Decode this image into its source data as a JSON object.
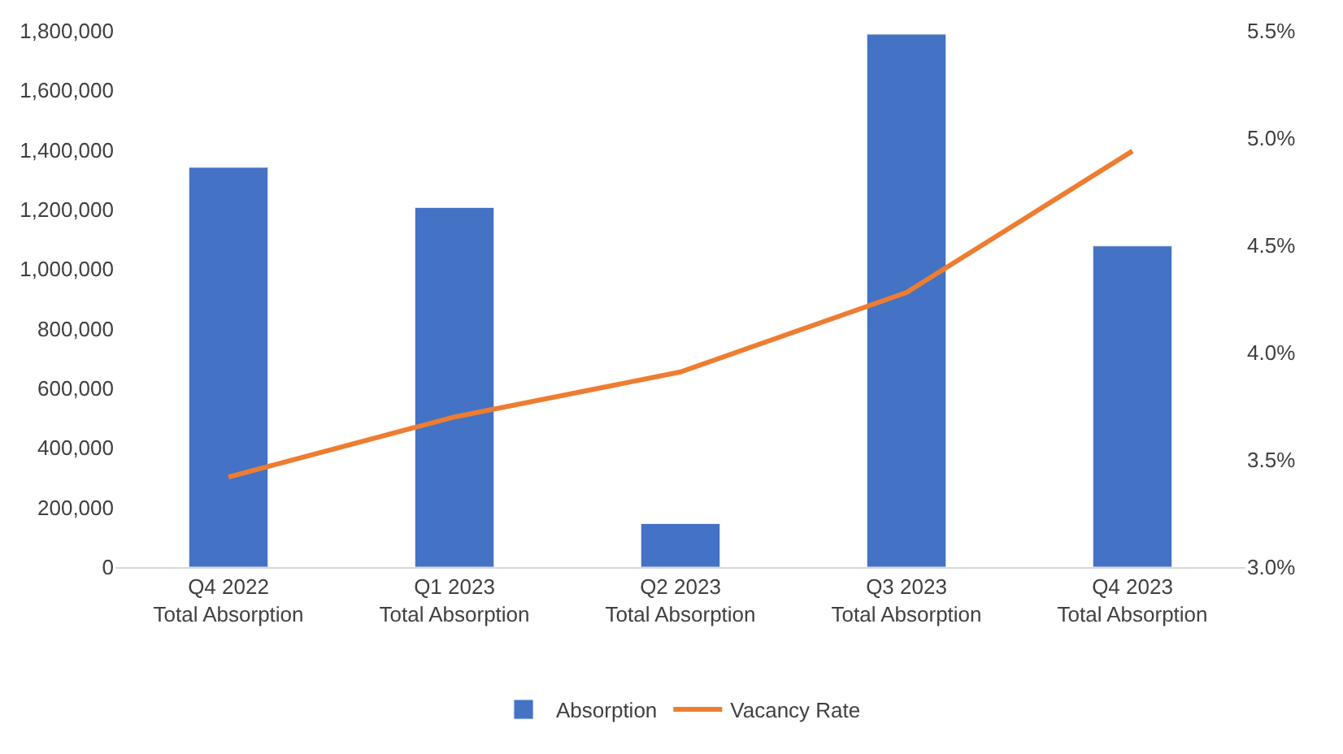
{
  "chart_data": {
    "type": "bar",
    "categories": [
      "Q4 2022\nTotal Absorption",
      "Q1 2023\nTotal Absorption",
      "Q2 2023\nTotal Absorption",
      "Q3 2023\nTotal Absorption",
      "Q4 2023\nTotal Absorption"
    ],
    "series": [
      {
        "name": "Absorption",
        "color": "#4472c4",
        "values": [
          1342000,
          1207000,
          146000,
          1789000,
          1078000
        ]
      },
      {
        "name": "Vacancy Rate",
        "type": "line",
        "axis": "y2",
        "color": "#ed7d31",
        "marker": "none",
        "line_style": "solid",
        "values": [
          3.42,
          3.7,
          3.91,
          4.28,
          4.94
        ]
      }
    ],
    "ylim": [
      0,
      1800000
    ],
    "yticks": [
      {
        "value": 0,
        "label": "0"
      },
      {
        "value": 200000,
        "label": "200,000"
      },
      {
        "value": 400000,
        "label": "400,000"
      },
      {
        "value": 600000,
        "label": "600,000"
      },
      {
        "value": 800000,
        "label": "800,000"
      },
      {
        "value": 1000000,
        "label": "1,000,000"
      },
      {
        "value": 1200000,
        "label": "1,200,000"
      },
      {
        "value": 1400000,
        "label": "1,400,000"
      },
      {
        "value": 1600000,
        "label": "1,600,000"
      },
      {
        "value": 1800000,
        "label": "1,800,000"
      }
    ],
    "y2lim": [
      3.0,
      5.5
    ],
    "y2ticks": [
      {
        "value": 3.0,
        "label": "3.0%"
      },
      {
        "value": 3.5,
        "label": "3.5%"
      },
      {
        "value": 4.0,
        "label": "4.0%"
      },
      {
        "value": 4.5,
        "label": "4.5%"
      },
      {
        "value": 5.0,
        "label": "5.0%"
      },
      {
        "value": 5.5,
        "label": "5.5%"
      }
    ],
    "legend": "bottom",
    "grid": false
  }
}
